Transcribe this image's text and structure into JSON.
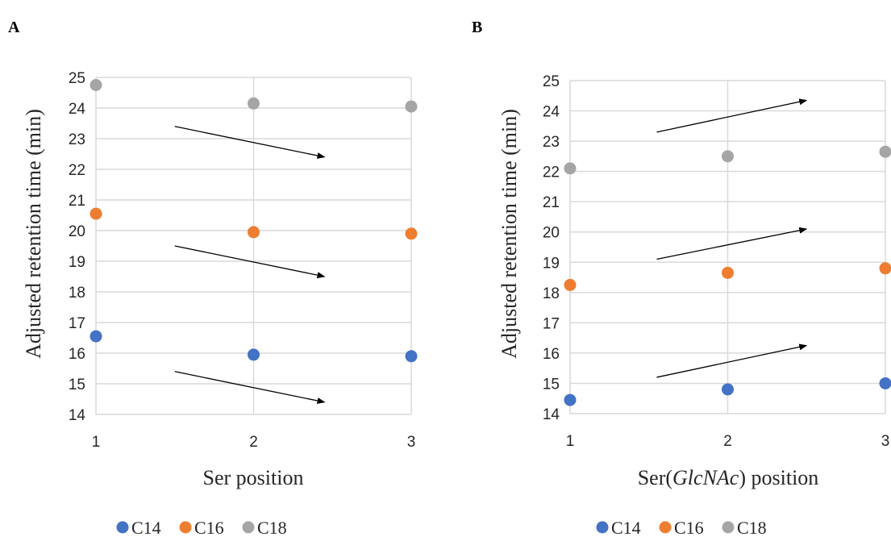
{
  "chart_data": [
    {
      "panel": "A",
      "type": "scatter",
      "xlabel": "Ser position",
      "ylabel": "Adjusted retention time (min)",
      "x": [
        1,
        2,
        3
      ],
      "xticks": [
        "1",
        "2",
        "3"
      ],
      "xlim": [
        1,
        3
      ],
      "ylim": [
        14,
        25
      ],
      "yticks": [
        14,
        15,
        16,
        17,
        18,
        19,
        20,
        21,
        22,
        23,
        24,
        25
      ],
      "grid": true,
      "legend_position": "bottom",
      "series": [
        {
          "name": "C14",
          "color": "#4472C4",
          "values": [
            16.55,
            15.95,
            15.9
          ]
        },
        {
          "name": "C16",
          "color": "#ED7D31",
          "values": [
            20.55,
            19.95,
            19.9
          ]
        },
        {
          "name": "C18",
          "color": "#A5A5A5",
          "values": [
            24.75,
            24.15,
            24.05
          ]
        }
      ],
      "annotations": [
        {
          "type": "arrow",
          "from": [
            1.5,
            23.4
          ],
          "to": [
            2.45,
            22.4
          ]
        },
        {
          "type": "arrow",
          "from": [
            1.5,
            19.5
          ],
          "to": [
            2.45,
            18.5
          ]
        },
        {
          "type": "arrow",
          "from": [
            1.5,
            15.4
          ],
          "to": [
            2.45,
            14.4
          ]
        }
      ]
    },
    {
      "panel": "B",
      "type": "scatter",
      "xlabel_parts": [
        "Ser(",
        "GlcNAc",
        ") position"
      ],
      "ylabel": "Adjusted retention time (min)",
      "x": [
        1,
        2,
        3
      ],
      "xticks": [
        "1",
        "2",
        "3"
      ],
      "xlim": [
        1,
        3
      ],
      "ylim": [
        14,
        25
      ],
      "yticks": [
        14,
        15,
        16,
        17,
        18,
        19,
        20,
        21,
        22,
        23,
        24,
        25
      ],
      "grid": true,
      "legend_position": "bottom",
      "series": [
        {
          "name": "C14",
          "color": "#4472C4",
          "values": [
            14.45,
            14.8,
            15.0
          ]
        },
        {
          "name": "C16",
          "color": "#ED7D31",
          "values": [
            18.25,
            18.65,
            18.8
          ]
        },
        {
          "name": "C18",
          "color": "#A5A5A5",
          "values": [
            22.1,
            22.5,
            22.65
          ]
        }
      ],
      "annotations": [
        {
          "type": "arrow",
          "from": [
            1.55,
            23.3
          ],
          "to": [
            2.5,
            24.35
          ]
        },
        {
          "type": "arrow",
          "from": [
            1.55,
            19.1
          ],
          "to": [
            2.5,
            20.1
          ]
        },
        {
          "type": "arrow",
          "from": [
            1.55,
            15.2
          ],
          "to": [
            2.5,
            16.25
          ]
        }
      ]
    }
  ]
}
